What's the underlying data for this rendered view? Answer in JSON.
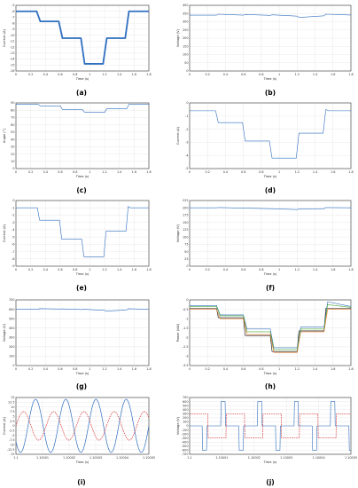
{
  "colors": {
    "blue": "#2f6fc0",
    "orange": "#e07020",
    "green": "#4aa832",
    "red": "#d42a2a",
    "black": "#111111"
  },
  "chart_data": [
    {
      "type": "line",
      "caption": "(a)",
      "xlabel": "Time (s)",
      "ylabel": "Current (A)",
      "xlim": [
        0,
        1.8
      ],
      "ylim": [
        -16,
        -5
      ],
      "xticks": [
        0,
        0.2,
        0.4,
        0.6,
        0.8,
        1,
        1.2,
        1.4,
        1.6,
        1.8
      ],
      "yticks": [
        -5,
        -6,
        -7,
        -8,
        -9,
        -10,
        -11,
        -12,
        -13,
        -14,
        -15,
        -16
      ],
      "series": [
        {
          "color": "blue",
          "width": 1.8,
          "x": [
            0,
            0.28,
            0.33,
            0.58,
            0.63,
            0.88,
            0.93,
            1.18,
            1.23,
            1.48,
            1.53,
            1.8
          ],
          "y": [
            -6,
            -6,
            -7.7,
            -7.7,
            -10.5,
            -10.5,
            -14.8,
            -14.8,
            -10.5,
            -10.5,
            -6,
            -6
          ]
        }
      ]
    },
    {
      "type": "line",
      "caption": "(b)",
      "xlabel": "Time (s)",
      "ylabel": "Voltage (V)",
      "xlim": [
        0,
        1.8
      ],
      "ylim": [
        0,
        400
      ],
      "xticks": [
        0,
        0.2,
        0.4,
        0.6,
        0.8,
        1,
        1.2,
        1.4,
        1.6,
        1.8
      ],
      "yticks": [
        0,
        50,
        100,
        150,
        200,
        250,
        300,
        350,
        400
      ],
      "series": [
        {
          "color": "blue",
          "width": 0.6,
          "x": [
            0,
            0.3,
            0.32,
            0.6,
            0.62,
            0.9,
            0.92,
            1.2,
            1.22,
            1.5,
            1.52,
            1.8
          ],
          "y": [
            340,
            340,
            346,
            340,
            344,
            339,
            342,
            334,
            326,
            336,
            346,
            341
          ]
        }
      ]
    },
    {
      "type": "line",
      "caption": "(c)",
      "xlabel": "Time (s)",
      "ylabel": "Angle (°)",
      "xlim": [
        0,
        1.8
      ],
      "ylim": [
        0,
        90
      ],
      "xticks": [
        0,
        0.2,
        0.4,
        0.6,
        0.8,
        1,
        1.2,
        1.4,
        1.6,
        1.8
      ],
      "yticks": [
        0,
        10,
        20,
        30,
        40,
        50,
        60,
        70,
        80,
        90
      ],
      "series": [
        {
          "color": "blue",
          "width": 0.6,
          "x": [
            0,
            0.3,
            0.33,
            0.6,
            0.63,
            0.9,
            0.93,
            1.2,
            1.23,
            1.5,
            1.53,
            1.8
          ],
          "y": [
            88,
            88,
            86,
            86,
            81,
            81,
            77,
            77,
            82,
            82,
            88,
            88
          ]
        }
      ]
    },
    {
      "type": "line",
      "caption": "(d)",
      "xlabel": "Time (s)",
      "ylabel": "Current (A)",
      "xlim": [
        0,
        1.8
      ],
      "ylim": [
        -5,
        0
      ],
      "xticks": [
        0,
        0.2,
        0.4,
        0.6,
        0.8,
        1,
        1.2,
        1.4,
        1.6,
        1.8
      ],
      "yticks": [
        0,
        -1,
        -2,
        -3,
        -4,
        -5
      ],
      "series": [
        {
          "color": "blue",
          "width": 0.6,
          "x": [
            0,
            0.29,
            0.32,
            0.35,
            0.59,
            0.62,
            0.65,
            0.89,
            0.92,
            0.95,
            1.19,
            1.22,
            1.25,
            1.49,
            1.52,
            1.55,
            1.8
          ],
          "y": [
            -0.6,
            -0.6,
            -1.5,
            -1.5,
            -1.5,
            -2.9,
            -2.9,
            -2.9,
            -4.2,
            -4.2,
            -4.2,
            -2.3,
            -2.3,
            -2.3,
            -0.5,
            -0.6,
            -0.6
          ]
        }
      ]
    },
    {
      "type": "line",
      "caption": "(e)",
      "xlabel": "Time (s)",
      "ylabel": "Current (A)",
      "xlim": [
        0,
        1.8
      ],
      "ylim": [
        -9,
        0
      ],
      "xticks": [
        0,
        0.2,
        0.4,
        0.6,
        0.8,
        1,
        1.2,
        1.4,
        1.6,
        1.8
      ],
      "yticks": [
        0,
        -1,
        -2,
        -3,
        -4,
        -5,
        -6,
        -7,
        -8,
        -9
      ],
      "series": [
        {
          "color": "blue",
          "width": 0.6,
          "x": [
            0,
            0.29,
            0.32,
            0.35,
            0.59,
            0.62,
            0.65,
            0.89,
            0.92,
            0.95,
            1.19,
            1.22,
            1.25,
            1.49,
            1.52,
            1.55,
            1.8
          ],
          "y": [
            -1,
            -1,
            -2.7,
            -2.7,
            -2.7,
            -5.3,
            -5.3,
            -5.3,
            -7.7,
            -7.7,
            -7.7,
            -4.2,
            -4.2,
            -4.2,
            -0.8,
            -1,
            -1
          ]
        }
      ]
    },
    {
      "type": "line",
      "caption": "(f)",
      "xlabel": "Time (s)",
      "ylabel": "Voltage (V)",
      "xlim": [
        0,
        1.8
      ],
      "ylim": [
        0,
        225
      ],
      "xticks": [
        0,
        0.2,
        0.4,
        0.6,
        0.8,
        1,
        1.2,
        1.4,
        1.6,
        1.8
      ],
      "yticks": [
        0,
        25,
        50,
        75,
        100,
        125,
        150,
        175,
        200,
        225
      ],
      "series": [
        {
          "color": "blue",
          "width": 0.6,
          "x": [
            0,
            0.3,
            0.32,
            0.6,
            0.62,
            0.9,
            0.92,
            1.2,
            1.22,
            1.5,
            1.52,
            1.8
          ],
          "y": [
            200,
            200,
            201,
            199,
            199,
            197,
            197,
            194,
            196,
            197,
            201,
            200
          ]
        }
      ]
    },
    {
      "type": "line",
      "caption": "(g)",
      "xlabel": "Time (s)",
      "ylabel": "Voltage (V)",
      "xlim": [
        0,
        1.8
      ],
      "ylim": [
        0,
        700
      ],
      "xticks": [
        0,
        0.2,
        0.4,
        0.6,
        0.8,
        1,
        1.2,
        1.4,
        1.6,
        1.8
      ],
      "yticks": [
        0,
        100,
        200,
        300,
        400,
        500,
        600,
        700
      ],
      "series": [
        {
          "color": "blue",
          "width": 0.6,
          "x": [
            0,
            0.3,
            0.32,
            0.6,
            0.62,
            0.9,
            0.92,
            1.2,
            1.22,
            1.5,
            1.52,
            1.8
          ],
          "y": [
            600,
            600,
            607,
            602,
            605,
            597,
            600,
            588,
            581,
            592,
            606,
            600
          ]
        }
      ]
    },
    {
      "type": "line",
      "caption": "(h)",
      "xlabel": "Time (s)",
      "ylabel": "Power (kW)",
      "xlim": [
        0,
        1.8
      ],
      "ylim": [
        -3.5,
        0
      ],
      "xticks": [
        0,
        0.2,
        0.4,
        0.6,
        0.8,
        1,
        1.2,
        1.4,
        1.6,
        1.8
      ],
      "yticks": [
        0,
        -0.5,
        -1,
        -1.5,
        -2,
        -2.5,
        -3,
        -3.5
      ],
      "series": [
        {
          "color": "black",
          "width": 0.6,
          "x": [
            0,
            0.3,
            0.32,
            0.6,
            0.62,
            0.9,
            0.92,
            1.2,
            1.22,
            1.5,
            1.52,
            1.8
          ],
          "y": [
            -0.45,
            -0.45,
            -0.95,
            -0.95,
            -1.9,
            -1.9,
            -2.75,
            -2.75,
            -1.65,
            -1.65,
            -0.45,
            -0.45
          ]
        },
        {
          "color": "blue",
          "width": 0.6,
          "x": [
            0,
            0.3,
            0.34,
            0.6,
            0.64,
            0.9,
            0.94,
            1.2,
            1.24,
            1.5,
            1.54,
            1.8
          ],
          "y": [
            -0.3,
            -0.3,
            -0.8,
            -0.8,
            -1.55,
            -1.55,
            -2.55,
            -2.55,
            -1.45,
            -1.45,
            -0.1,
            -0.35
          ]
        },
        {
          "color": "green",
          "width": 0.6,
          "x": [
            0,
            0.3,
            0.34,
            0.6,
            0.64,
            0.9,
            0.94,
            1.2,
            1.24,
            1.5,
            1.54,
            1.8
          ],
          "y": [
            -0.35,
            -0.35,
            -0.85,
            -0.85,
            -1.7,
            -1.7,
            -2.65,
            -2.65,
            -1.55,
            -1.55,
            -0.25,
            -0.4
          ]
        },
        {
          "color": "orange",
          "width": 0.6,
          "x": [
            0,
            0.3,
            0.34,
            0.6,
            0.64,
            0.9,
            0.94,
            1.2,
            1.24,
            1.5,
            1.54,
            1.8
          ],
          "y": [
            -0.5,
            -0.5,
            -1,
            -1,
            -1.85,
            -1.85,
            -2.8,
            -2.8,
            -1.7,
            -1.7,
            -0.5,
            -0.5
          ]
        }
      ]
    },
    {
      "type": "line",
      "caption": "(i)",
      "xlabel": "Time (s)",
      "ylabel": "Current (A)",
      "xlim": [
        1.1,
        1.10005
      ],
      "ylim": [
        -15,
        15
      ],
      "xticks": [
        1.1,
        1.10001,
        1.10002,
        1.10003,
        1.10004,
        1.10005
      ],
      "xticklabels": [
        "1.1",
        "1.10001",
        "1.10002",
        "1.10003",
        "1.10004",
        "1.10005"
      ],
      "yticks": [
        15,
        12.5,
        10,
        7.5,
        5,
        2.5,
        0,
        -2.5,
        -5,
        -7.5,
        -10,
        -12.5,
        -15
      ],
      "series": [
        {
          "color": "blue",
          "width": 0.7,
          "wave": "sine",
          "amplitude": 14,
          "offset": 0,
          "periods": 4.4,
          "phase": 0.6
        },
        {
          "color": "red",
          "width": 0.7,
          "dash": "1.5,1",
          "wave": "sine",
          "amplitude": 7.5,
          "offset": 0,
          "periods": 4.4,
          "phase": 2.0
        }
      ]
    },
    {
      "type": "line",
      "caption": "(j)",
      "xlabel": "Time (s)",
      "ylabel": "Voltage (V)",
      "xlim": [
        1.1,
        1.10005
      ],
      "ylim": [
        -700,
        700
      ],
      "xticks": [
        1.1,
        1.10001,
        1.10002,
        1.10003,
        1.10004,
        1.10005
      ],
      "xticklabels": [
        "1.1",
        "1.10001",
        "1.10002",
        "1.10003",
        "1.10004",
        "1.10005"
      ],
      "yticks": [
        700,
        600,
        500,
        400,
        300,
        200,
        100,
        0,
        -100,
        -200,
        -300,
        -400,
        -500,
        -600,
        -700
      ],
      "series": [
        {
          "color": "blue",
          "width": 0.6,
          "wave": "pulse",
          "amplitude": 600,
          "periods": 4.4,
          "phase": 0.15,
          "duty": 0.12
        },
        {
          "color": "red",
          "width": 0.7,
          "dash": "1.5,1",
          "wave": "square",
          "amplitude": 300,
          "periods": 4.4,
          "phase": 0.0
        }
      ]
    }
  ]
}
